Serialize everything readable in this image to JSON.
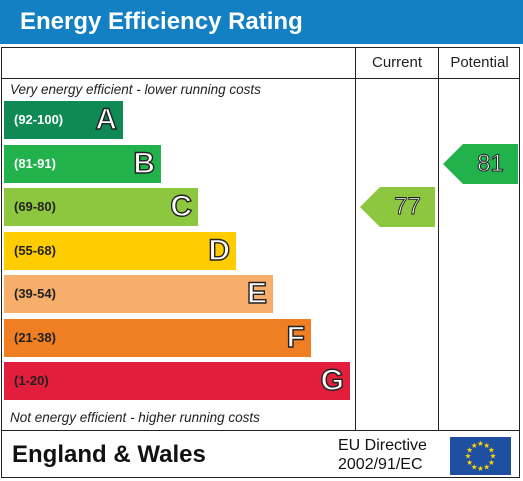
{
  "title": "Energy Efficiency Rating",
  "columns": {
    "current": "Current",
    "potential": "Potential"
  },
  "top_note": "Very energy efficient - lower running costs",
  "bottom_note": "Not energy efficient - higher running costs",
  "footer": {
    "region": "England & Wales",
    "directive_line1": "EU Directive",
    "directive_line2": "2002/91/EC"
  },
  "chart_data": {
    "type": "bar",
    "title": "Energy Efficiency Rating",
    "categories": [
      "A",
      "B",
      "C",
      "D",
      "E",
      "F",
      "G"
    ],
    "bands": [
      {
        "letter": "A",
        "range": "(92-100)",
        "color": "#0f8a55",
        "text_color": "#ffffff",
        "min": 92,
        "max": 100
      },
      {
        "letter": "B",
        "range": "(81-91)",
        "color": "#22b24c",
        "text_color": "#ffffff",
        "min": 81,
        "max": 91
      },
      {
        "letter": "C",
        "range": "(69-80)",
        "color": "#8dc63f",
        "text_color": "#222222",
        "min": 69,
        "max": 80
      },
      {
        "letter": "D",
        "range": "(55-68)",
        "color": "#ffcc00",
        "text_color": "#222222",
        "min": 55,
        "max": 68
      },
      {
        "letter": "E",
        "range": "(39-54)",
        "color": "#f7ae6a",
        "text_color": "#222222",
        "min": 39,
        "max": 54
      },
      {
        "letter": "F",
        "range": "(21-38)",
        "color": "#ef7f22",
        "text_color": "#222222",
        "min": 21,
        "max": 38
      },
      {
        "letter": "G",
        "range": "(1-20)",
        "color": "#e31d3c",
        "text_color": "#222222",
        "min": 1,
        "max": 20
      }
    ],
    "current": {
      "value": 77,
      "band": "C",
      "color": "#8dc63f"
    },
    "potential": {
      "value": 81,
      "band": "B",
      "color": "#22b24c"
    }
  },
  "colors": {
    "title_bar": "#1380c4",
    "eu_flag_bg": "#1f4fa0",
    "eu_star": "#ffd700"
  }
}
